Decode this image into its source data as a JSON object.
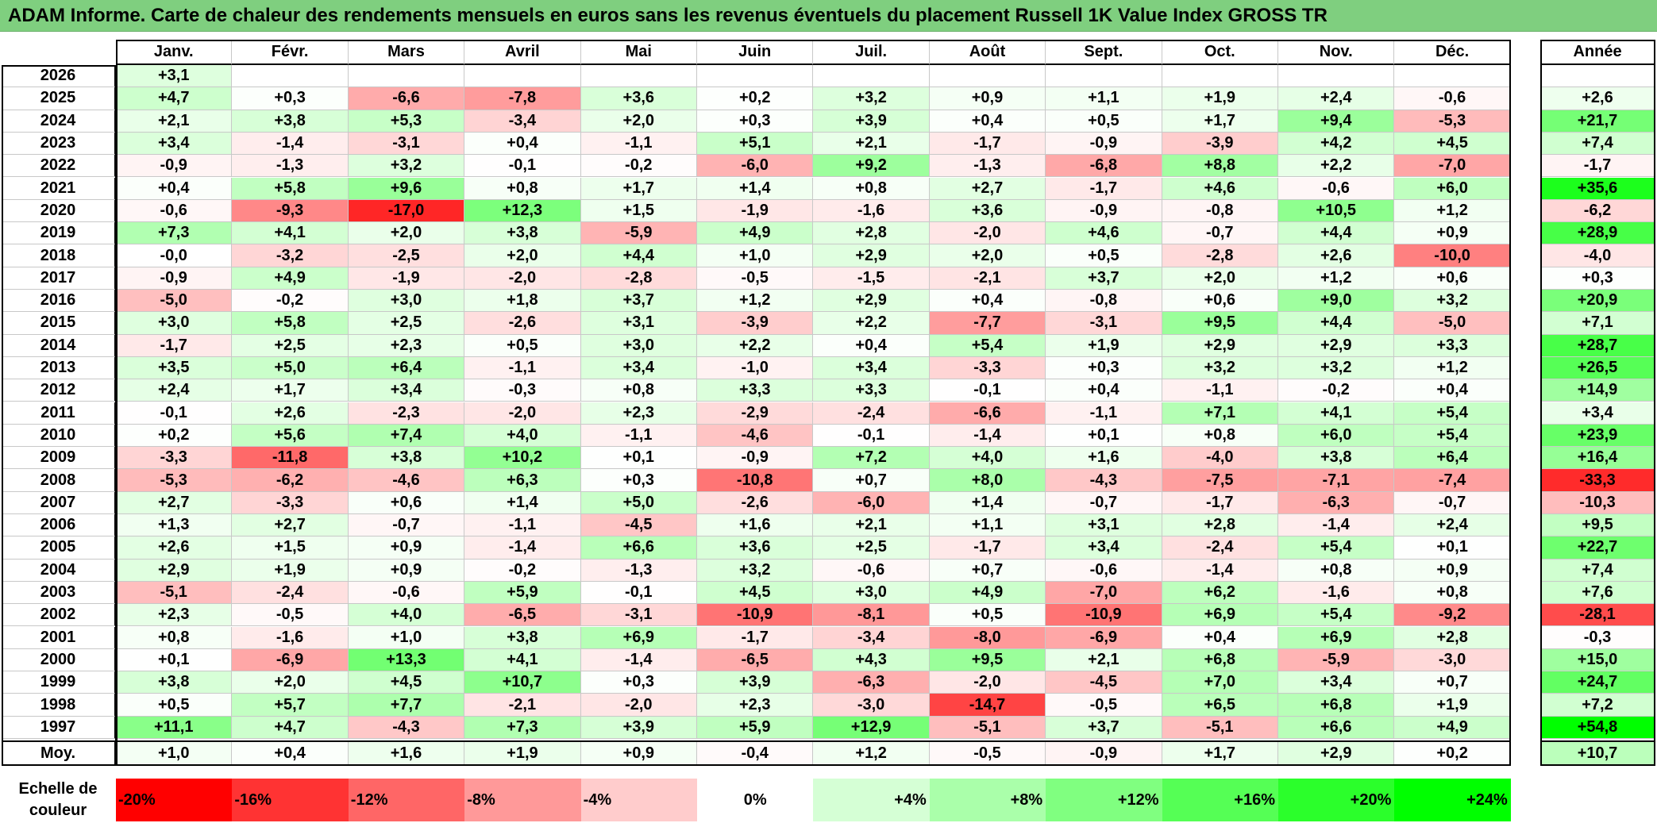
{
  "title": "ADAM Informe. Carte de chaleur des rendements mensuels en euros sans les revenus éventuels du placement Russell 1K Value Index GROSS TR",
  "chart_data": {
    "type": "heatmap",
    "title": "ADAM Informe. Carte de chaleur des rendements mensuels en euros sans les revenus éventuels du placement Russell 1K Value Index GROSS TR",
    "months": [
      "Janv.",
      "Févr.",
      "Mars",
      "Avril",
      "Mai",
      "Juin",
      "Juil.",
      "Août",
      "Sept.",
      "Oct.",
      "Nov.",
      "Déc."
    ],
    "annual_header": "Année",
    "average_label": "Moy.",
    "rows": [
      {
        "year": "2026",
        "values": [
          "+3,1",
          "",
          "",
          "",
          "",
          "",
          "",
          "",
          "",
          "",
          "",
          ""
        ],
        "annual": ""
      },
      {
        "year": "2025",
        "values": [
          "+4,7",
          "+0,3",
          "-6,6",
          "-7,8",
          "+3,6",
          "+0,2",
          "+3,2",
          "+0,9",
          "+1,1",
          "+1,9",
          "+2,4",
          "-0,6"
        ],
        "annual": "+2,6"
      },
      {
        "year": "2024",
        "values": [
          "+2,1",
          "+3,8",
          "+5,3",
          "-3,4",
          "+2,0",
          "+0,3",
          "+3,9",
          "+0,4",
          "+0,5",
          "+1,7",
          "+9,4",
          "-5,3"
        ],
        "annual": "+21,7"
      },
      {
        "year": "2023",
        "values": [
          "+3,4",
          "-1,4",
          "-3,1",
          "+0,4",
          "-1,1",
          "+5,1",
          "+2,1",
          "-1,7",
          "-0,9",
          "-3,9",
          "+4,2",
          "+4,5"
        ],
        "annual": "+7,4"
      },
      {
        "year": "2022",
        "values": [
          "-0,9",
          "-1,3",
          "+3,2",
          "-0,1",
          "-0,2",
          "-6,0",
          "+9,2",
          "-1,3",
          "-6,8",
          "+8,8",
          "+2,2",
          "-7,0"
        ],
        "annual": "-1,7"
      },
      {
        "year": "2021",
        "values": [
          "+0,4",
          "+5,8",
          "+9,6",
          "+0,8",
          "+1,7",
          "+1,4",
          "+0,8",
          "+2,7",
          "-1,7",
          "+4,6",
          "-0,6",
          "+6,0"
        ],
        "annual": "+35,6"
      },
      {
        "year": "2020",
        "values": [
          "-0,6",
          "-9,3",
          "-17,0",
          "+12,3",
          "+1,5",
          "-1,9",
          "-1,6",
          "+3,6",
          "-0,9",
          "-0,8",
          "+10,5",
          "+1,2"
        ],
        "annual": "-6,2"
      },
      {
        "year": "2019",
        "values": [
          "+7,3",
          "+4,1",
          "+2,0",
          "+3,8",
          "-5,9",
          "+4,9",
          "+2,8",
          "-2,0",
          "+4,6",
          "-0,7",
          "+4,4",
          "+0,9"
        ],
        "annual": "+28,9"
      },
      {
        "year": "2018",
        "values": [
          "-0,0",
          "-3,2",
          "-2,5",
          "+2,0",
          "+4,4",
          "+1,0",
          "+2,9",
          "+2,0",
          "+0,5",
          "-2,8",
          "+2,6",
          "-10,0"
        ],
        "annual": "-4,0"
      },
      {
        "year": "2017",
        "values": [
          "-0,9",
          "+4,9",
          "-1,9",
          "-2,0",
          "-2,8",
          "-0,5",
          "-1,5",
          "-2,1",
          "+3,7",
          "+2,0",
          "+1,2",
          "+0,6"
        ],
        "annual": "+0,3"
      },
      {
        "year": "2016",
        "values": [
          "-5,0",
          "-0,2",
          "+3,0",
          "+1,8",
          "+3,7",
          "+1,2",
          "+2,9",
          "+0,4",
          "-0,8",
          "+0,6",
          "+9,0",
          "+3,2"
        ],
        "annual": "+20,9"
      },
      {
        "year": "2015",
        "values": [
          "+3,0",
          "+5,8",
          "+2,5",
          "-2,6",
          "+3,1",
          "-3,9",
          "+2,2",
          "-7,7",
          "-3,1",
          "+9,5",
          "+4,4",
          "-5,0"
        ],
        "annual": "+7,1"
      },
      {
        "year": "2014",
        "values": [
          "-1,7",
          "+2,5",
          "+2,3",
          "+0,5",
          "+3,0",
          "+2,2",
          "+0,4",
          "+5,4",
          "+1,9",
          "+2,9",
          "+2,9",
          "+3,3"
        ],
        "annual": "+28,7"
      },
      {
        "year": "2013",
        "values": [
          "+3,5",
          "+5,0",
          "+6,4",
          "-1,1",
          "+3,4",
          "-1,0",
          "+3,4",
          "-3,3",
          "+0,3",
          "+3,2",
          "+3,2",
          "+1,2"
        ],
        "annual": "+26,5"
      },
      {
        "year": "2012",
        "values": [
          "+2,4",
          "+1,7",
          "+3,4",
          "-0,3",
          "+0,8",
          "+3,3",
          "+3,3",
          "-0,1",
          "+0,4",
          "-1,1",
          "-0,2",
          "+0,4"
        ],
        "annual": "+14,9"
      },
      {
        "year": "2011",
        "values": [
          "-0,1",
          "+2,6",
          "-2,3",
          "-2,0",
          "+2,3",
          "-2,9",
          "-2,4",
          "-6,6",
          "-1,1",
          "+7,1",
          "+4,1",
          "+5,4"
        ],
        "annual": "+3,4"
      },
      {
        "year": "2010",
        "values": [
          "+0,2",
          "+5,6",
          "+7,4",
          "+4,0",
          "-1,1",
          "-4,6",
          "-0,1",
          "-1,4",
          "+0,1",
          "+0,8",
          "+6,0",
          "+5,4"
        ],
        "annual": "+23,9"
      },
      {
        "year": "2009",
        "values": [
          "-3,3",
          "-11,8",
          "+3,8",
          "+10,2",
          "+0,1",
          "-0,9",
          "+7,2",
          "+4,0",
          "+1,6",
          "-4,0",
          "+3,8",
          "+6,4"
        ],
        "annual": "+16,4"
      },
      {
        "year": "2008",
        "values": [
          "-5,3",
          "-6,2",
          "-4,6",
          "+6,3",
          "+0,3",
          "-10,8",
          "+0,7",
          "+8,0",
          "-4,3",
          "-7,5",
          "-7,1",
          "-7,4"
        ],
        "annual": "-33,3"
      },
      {
        "year": "2007",
        "values": [
          "+2,7",
          "-3,3",
          "+0,6",
          "+1,4",
          "+5,0",
          "-2,6",
          "-6,0",
          "+1,4",
          "-0,7",
          "-1,7",
          "-6,3",
          "-0,7"
        ],
        "annual": "-10,3"
      },
      {
        "year": "2006",
        "values": [
          "+1,3",
          "+2,7",
          "-0,7",
          "-1,1",
          "-4,5",
          "+1,6",
          "+2,1",
          "+1,1",
          "+3,1",
          "+2,8",
          "-1,4",
          "+2,4"
        ],
        "annual": "+9,5"
      },
      {
        "year": "2005",
        "values": [
          "+2,6",
          "+1,5",
          "+0,9",
          "-1,4",
          "+6,6",
          "+3,6",
          "+2,5",
          "-1,7",
          "+3,4",
          "-2,4",
          "+5,4",
          "+0,1"
        ],
        "annual": "+22,7"
      },
      {
        "year": "2004",
        "values": [
          "+2,9",
          "+1,9",
          "+0,9",
          "-0,2",
          "-1,3",
          "+3,2",
          "-0,6",
          "+0,7",
          "-0,6",
          "-1,4",
          "+0,8",
          "+0,9"
        ],
        "annual": "+7,4"
      },
      {
        "year": "2003",
        "values": [
          "-5,1",
          "-2,4",
          "-0,6",
          "+5,9",
          "-0,1",
          "+4,5",
          "+3,0",
          "+4,9",
          "-7,0",
          "+6,2",
          "-1,6",
          "+0,8"
        ],
        "annual": "+7,6"
      },
      {
        "year": "2002",
        "values": [
          "+2,3",
          "-0,5",
          "+4,0",
          "-6,5",
          "-3,1",
          "-10,9",
          "-8,1",
          "+0,5",
          "-10,9",
          "+6,9",
          "+5,4",
          "-9,2"
        ],
        "annual": "-28,1"
      },
      {
        "year": "2001",
        "values": [
          "+0,8",
          "-1,6",
          "+1,0",
          "+3,8",
          "+6,9",
          "-1,7",
          "-3,4",
          "-8,0",
          "-6,9",
          "+0,4",
          "+6,9",
          "+2,8"
        ],
        "annual": "-0,3"
      },
      {
        "year": "2000",
        "values": [
          "+0,1",
          "-6,9",
          "+13,3",
          "+4,1",
          "-1,4",
          "-6,5",
          "+4,3",
          "+9,5",
          "+2,1",
          "+6,8",
          "-5,9",
          "-3,0"
        ],
        "annual": "+15,0"
      },
      {
        "year": "1999",
        "values": [
          "+3,8",
          "+2,0",
          "+4,5",
          "+10,7",
          "+0,3",
          "+3,9",
          "-6,3",
          "-2,0",
          "-4,5",
          "+7,0",
          "+3,4",
          "+0,7"
        ],
        "annual": "+24,7"
      },
      {
        "year": "1998",
        "values": [
          "+0,5",
          "+5,7",
          "+7,7",
          "-2,1",
          "-2,0",
          "+2,3",
          "-3,0",
          "-14,7",
          "-0,5",
          "+6,5",
          "+6,8",
          "+1,9"
        ],
        "annual": "+7,2"
      },
      {
        "year": "1997",
        "values": [
          "+11,1",
          "+4,7",
          "-4,3",
          "+7,3",
          "+3,9",
          "+5,9",
          "+12,9",
          "-5,1",
          "+3,7",
          "-5,1",
          "+6,6",
          "+4,9"
        ],
        "annual": "+54,8"
      }
    ],
    "average": {
      "values": [
        "+1,0",
        "+0,4",
        "+1,6",
        "+1,9",
        "+0,9",
        "-0,4",
        "+1,2",
        "-0,5",
        "-0,9",
        "+1,7",
        "+2,9",
        "+0,2"
      ],
      "annual": "+10,7"
    },
    "legend": {
      "label_line1": "Echelle de",
      "label_line2": "couleur",
      "stops": [
        {
          "label": "-20%",
          "value": -20
        },
        {
          "label": "-16%",
          "value": -16
        },
        {
          "label": "-12%",
          "value": -12
        },
        {
          "label": "-8%",
          "value": -8
        },
        {
          "label": "-4%",
          "value": -4
        },
        {
          "label": "0%",
          "value": 0
        },
        {
          "label": "+4%",
          "value": 4
        },
        {
          "label": "+8%",
          "value": 8
        },
        {
          "label": "+12%",
          "value": 12
        },
        {
          "label": "+16%",
          "value": 16
        },
        {
          "label": "+20%",
          "value": 20
        },
        {
          "label": "+24%",
          "value": 24
        }
      ]
    },
    "color_scale": {
      "negative": "#ff0000",
      "neutral": "#ffffff",
      "positive": "#00ff00",
      "monthly_range": [
        -20,
        24
      ],
      "annual_range": [
        -40,
        40
      ]
    }
  }
}
